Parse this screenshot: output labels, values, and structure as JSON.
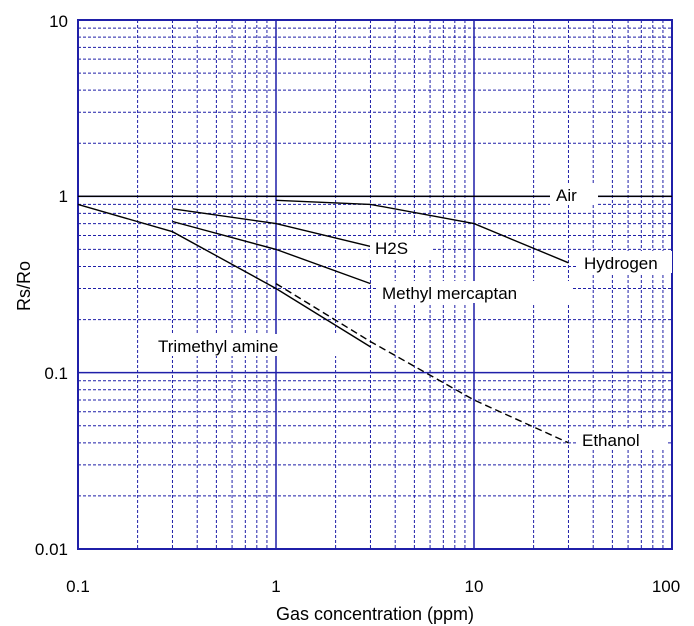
{
  "chart_data": {
    "type": "line",
    "xscale": "log",
    "yscale": "log",
    "xlim": [
      0.1,
      100
    ],
    "ylim": [
      0.01,
      10
    ],
    "xlabel": "Gas concentration (ppm)",
    "ylabel": "Rs/Ro",
    "grid": true,
    "x_ticks": [
      "0.1",
      "1",
      "10",
      "100"
    ],
    "y_ticks": [
      "0.01",
      "0.1",
      "1",
      "10"
    ],
    "colors": {
      "grid": "#1f1fa8",
      "line": "#000000",
      "background": "#ffffff"
    },
    "series": [
      {
        "name": "Air",
        "style": "solid",
        "x": [
          0.1,
          100
        ],
        "y": [
          1,
          1
        ]
      },
      {
        "name": "Hydrogen",
        "style": "solid",
        "x": [
          1,
          3,
          10,
          30
        ],
        "y": [
          0.95,
          0.9,
          0.7,
          0.42
        ]
      },
      {
        "name": "H2S",
        "style": "solid",
        "x": [
          0.3,
          1,
          3
        ],
        "y": [
          0.85,
          0.7,
          0.52
        ]
      },
      {
        "name": "Methyl mercaptan",
        "style": "solid",
        "x": [
          0.3,
          1,
          3
        ],
        "y": [
          0.72,
          0.5,
          0.32
        ]
      },
      {
        "name": "Trimethyl amine",
        "style": "solid",
        "x": [
          0.1,
          0.3,
          1,
          3
        ],
        "y": [
          0.9,
          0.63,
          0.3,
          0.14
        ]
      },
      {
        "name": "Ethanol",
        "style": "dashed",
        "x": [
          1,
          3,
          10,
          30
        ],
        "y": [
          0.32,
          0.15,
          0.07,
          0.04
        ]
      }
    ]
  }
}
